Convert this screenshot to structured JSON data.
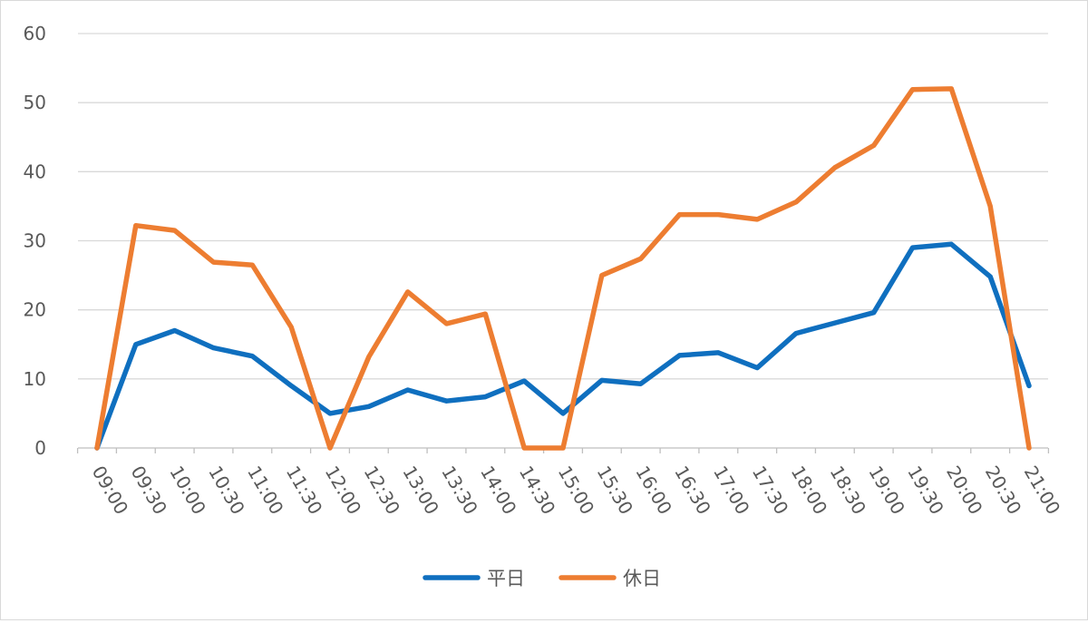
{
  "chart_data": {
    "type": "line",
    "title": "",
    "xlabel": "",
    "ylabel": "",
    "ylim": [
      0,
      60
    ],
    "yticks": [
      0,
      10,
      20,
      30,
      40,
      50,
      60
    ],
    "grid": "horizontal",
    "legend": "bottom-center",
    "categories": [
      "09:00",
      "09:30",
      "10:00",
      "10:30",
      "11:00",
      "11:30",
      "12:00",
      "12:30",
      "13:00",
      "13:30",
      "14:00",
      "14:30",
      "15:00",
      "15:30",
      "16:00",
      "16:30",
      "17:00",
      "17:30",
      "18:00",
      "18:30",
      "19:00",
      "19:30",
      "20:00",
      "20:30",
      "21:00"
    ],
    "series": [
      {
        "name": "平日",
        "color": "#0f6fbf",
        "values": [
          0,
          15,
          17,
          14.5,
          13.3,
          9,
          5,
          6,
          8.4,
          6.8,
          7.4,
          9.7,
          5,
          9.8,
          9.3,
          13.4,
          13.8,
          11.6,
          16.6,
          18.1,
          19.6,
          29,
          29.5,
          24.8,
          9
        ]
      },
      {
        "name": "休日",
        "color": "#ed7d31",
        "values": [
          0,
          32.2,
          31.5,
          26.9,
          26.5,
          17.5,
          0,
          13.2,
          22.6,
          18,
          19.4,
          0,
          0,
          25,
          27.4,
          33.8,
          33.8,
          33.1,
          35.6,
          40.6,
          43.8,
          51.9,
          52,
          35,
          0
        ]
      }
    ]
  }
}
